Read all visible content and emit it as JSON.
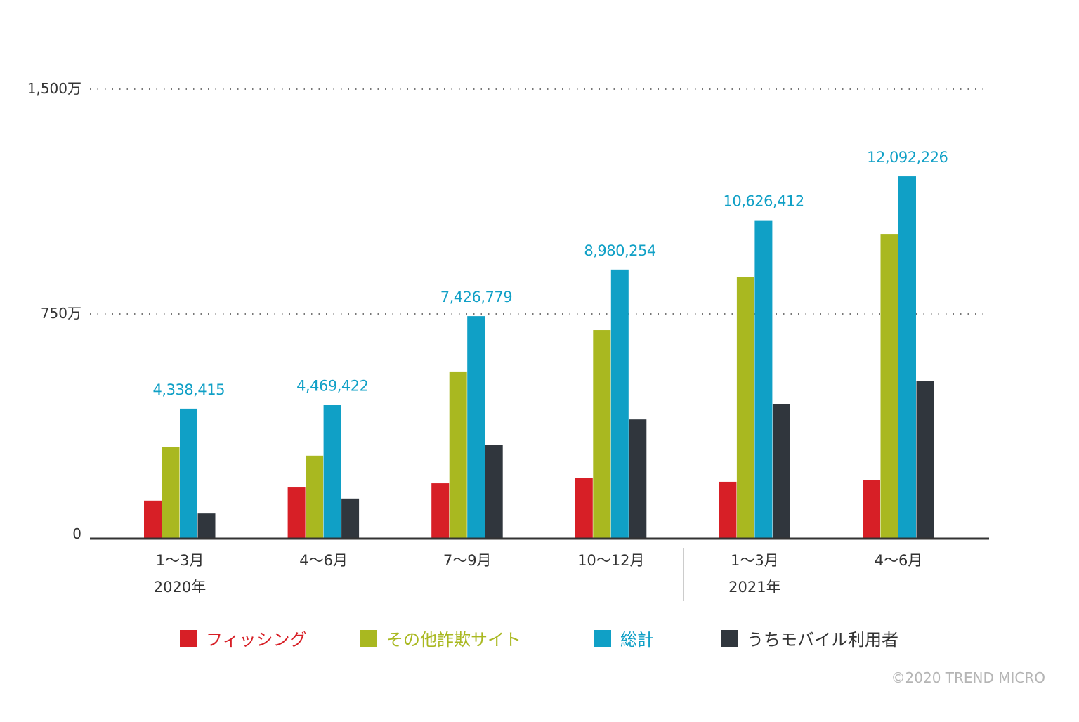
{
  "chart_data": {
    "type": "bar",
    "title": "",
    "xlabel": "",
    "ylabel": "",
    "ylim": [
      0,
      15000000
    ],
    "y_ticks": [
      {
        "value": 0,
        "label": "0"
      },
      {
        "value": 7500000,
        "label": "750万"
      },
      {
        "value": 15000000,
        "label": "1,500万"
      }
    ],
    "grid": true,
    "categories": [
      "1〜3月",
      "4〜6月",
      "7〜9月",
      "10〜12月",
      "1〜3月",
      "4〜6月"
    ],
    "year_labels": [
      {
        "label": "2020年",
        "category_index": 0
      },
      {
        "label": "2021年",
        "category_index": 4
      }
    ],
    "series": [
      {
        "name": "フィッシング",
        "color": "#d71f26",
        "values": [
          1270000,
          1710000,
          1850000,
          2020000,
          1900000,
          1950000
        ]
      },
      {
        "name": "その他詐欺サイト",
        "color": "#a9b820",
        "values": [
          3070000,
          2770000,
          5580000,
          6960000,
          8740000,
          10170000
        ]
      },
      {
        "name": "総計",
        "color": "#10a0c6",
        "values": [
          4338415,
          4469422,
          7426779,
          8980254,
          10626412,
          12092226
        ]
      },
      {
        "name": "うちモバイル利用者",
        "color": "#30363d",
        "values": [
          840000,
          1340000,
          3140000,
          3980000,
          4500000,
          5270000
        ]
      }
    ],
    "data_labels": [
      "4,338,415",
      "4,469,422",
      "7,426,779",
      "8,980,254",
      "10,626,412",
      "12,092,226"
    ],
    "legend_position": "bottom"
  },
  "copyright": "©2020 TREND MICRO"
}
